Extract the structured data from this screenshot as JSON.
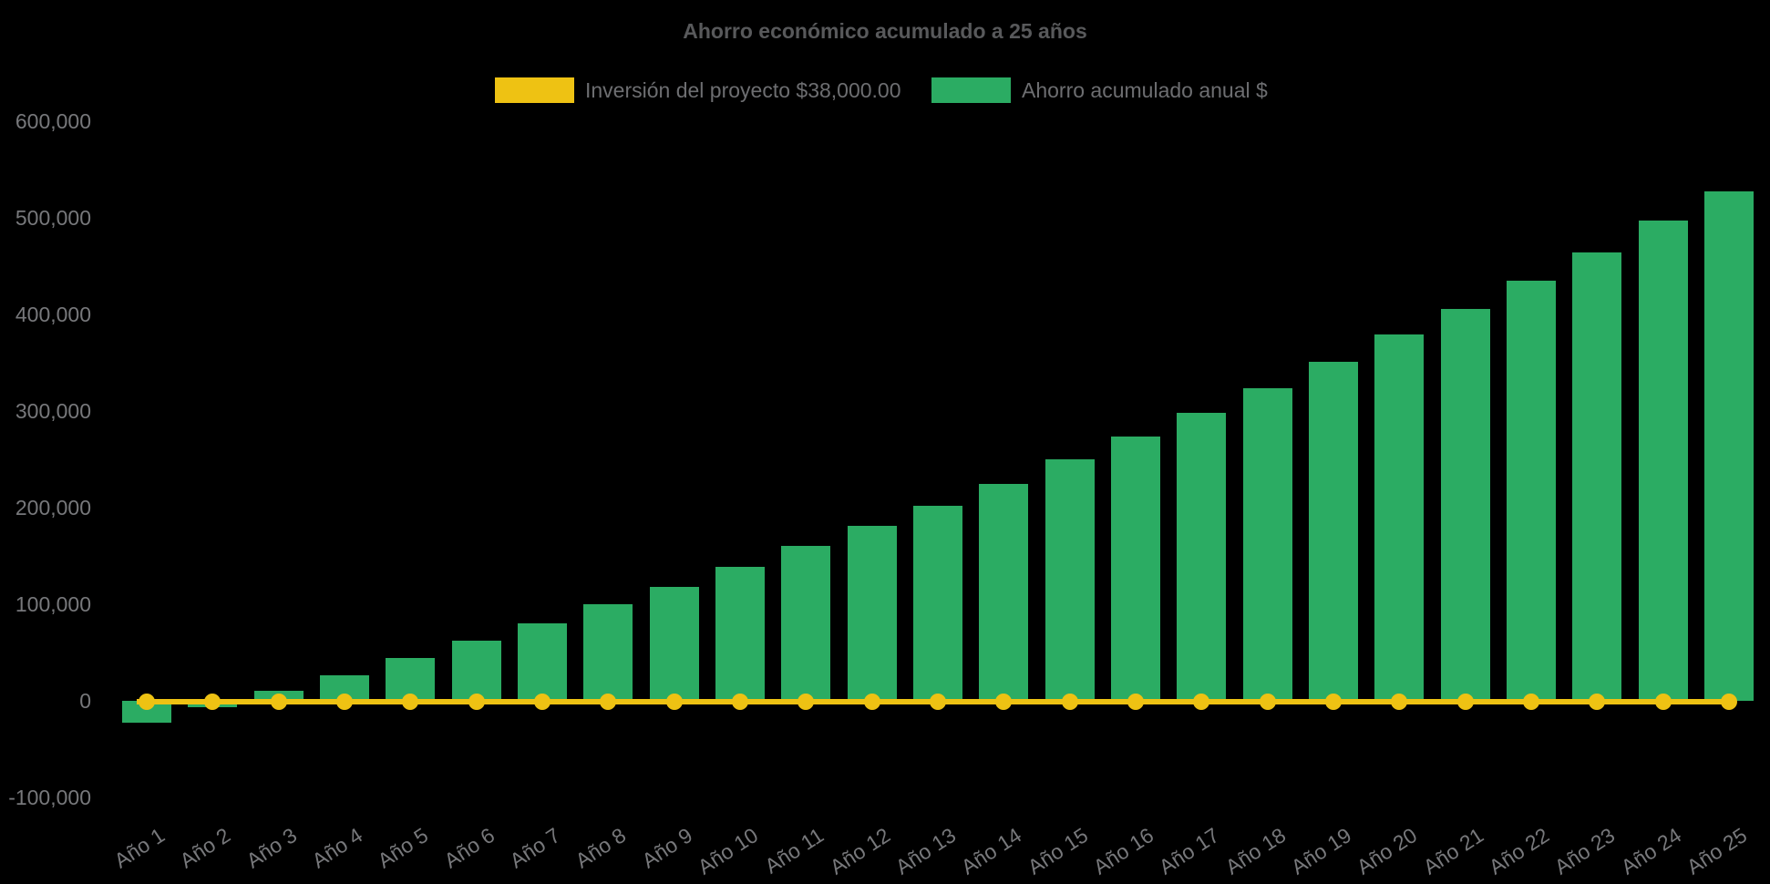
{
  "title": "Ahorro económico acumulado a 25 años",
  "colors": {
    "background": "#000000",
    "bar_green": "#2BAC63",
    "line_yellow": "#EEC213",
    "title_text": "#58595B",
    "tick_text": "#77787B",
    "legend_text": "#6D6E71"
  },
  "legend": {
    "items": [
      {
        "label": "Inversión del proyecto $38,000.00",
        "color": "#EEC213"
      },
      {
        "label": "Ahorro acumulado anual $",
        "color": "#2BAC63"
      }
    ]
  },
  "chart_data": {
    "type": "bar",
    "title": "Ahorro económico acumulado a 25 años",
    "xlabel": "",
    "ylabel": "",
    "grid": false,
    "legend_position": "top",
    "ylim": [
      -100000,
      600000
    ],
    "y_ticks": [
      {
        "value": 600000,
        "label": "600,000"
      },
      {
        "value": 500000,
        "label": "500,000"
      },
      {
        "value": 400000,
        "label": "400,000"
      },
      {
        "value": 300000,
        "label": "300,000"
      },
      {
        "value": 200000,
        "label": "200,000"
      },
      {
        "value": 100000,
        "label": "100,000"
      },
      {
        "value": 0,
        "label": "0"
      },
      {
        "value": -100000,
        "label": "-100,000"
      }
    ],
    "categories": [
      "Año 1",
      "Año 2",
      "Año 3",
      "Año 4",
      "Año 5",
      "Año 6",
      "Año 7",
      "Año 8",
      "Año 9",
      "Año 10",
      "Año 11",
      "Año 12",
      "Año 13",
      "Año 14",
      "Año 15",
      "Año 16",
      "Año 17",
      "Año 18",
      "Año 19",
      "Año 20",
      "Año 21",
      "Año 22",
      "Año 23",
      "Año 24",
      "Año 25"
    ],
    "series": [
      {
        "name": "Ahorro acumulado anual $",
        "type": "bar",
        "color": "#2BAC63",
        "values": [
          -23000,
          -7000,
          10000,
          26000,
          44000,
          62000,
          80000,
          100000,
          118000,
          139000,
          160000,
          181000,
          202000,
          225000,
          250000,
          274000,
          298000,
          324000,
          351000,
          379000,
          406000,
          435000,
          464000,
          497000,
          527000
        ]
      },
      {
        "name": "Inversión del proyecto $38,000.00",
        "type": "line",
        "color": "#EEC213",
        "values": [
          0,
          0,
          0,
          0,
          0,
          0,
          0,
          0,
          0,
          0,
          0,
          0,
          0,
          0,
          0,
          0,
          0,
          0,
          0,
          0,
          0,
          0,
          0,
          0,
          0
        ]
      }
    ]
  }
}
